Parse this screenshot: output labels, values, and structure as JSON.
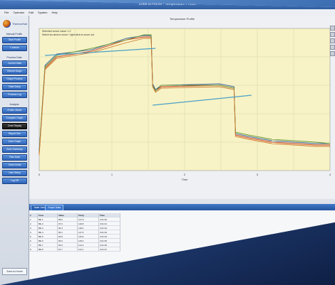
{
  "window": {
    "title": "Zone-to-Home - Temperature Profile",
    "clock": "10:05:31 AM"
  },
  "menubar": {
    "items": [
      "File",
      "Operator",
      "Edit",
      "System",
      "Help"
    ]
  },
  "sidebar": {
    "app_name": "ThermoHub",
    "groups": [
      {
        "heading": "Manual Profile",
        "items": [
          "Start Profile",
          "Controls"
        ]
      },
      {
        "heading": "Process Data",
        "items": [
          "Current Data",
          "Recent Graph",
          "Graph Process",
          "Data Setup",
          "Process Log"
        ]
      },
      {
        "heading": "Analysis",
        "items": [
          "Profile Viewer",
          "Compare Graph",
          "Zone Display",
          "Report Gen",
          "Zone Graph",
          "Zone Summary",
          "Raw Data",
          "Chart Limits",
          "User Setup",
          "Log Off"
        ]
      }
    ],
    "footer": "Zone-to-Home"
  },
  "chart": {
    "title": "Temperature Profile",
    "legend_lines": [
      "Selected cursor value: 1.2",
      "Select an area to zoom / right-click to zoom out"
    ],
    "x_axis_label": "Time",
    "colors": {
      "background": "#f7f3c6",
      "gridline": "#cccfa3",
      "reference": "#4aa0c8"
    },
    "chart_data": {
      "type": "line",
      "series": [
        {
          "color": "#c63a1e",
          "points": [
            [
              0,
              0.12
            ],
            [
              0.02,
              0.72
            ],
            [
              0.06,
              0.8
            ],
            [
              0.18,
              0.84
            ],
            [
              0.3,
              0.92
            ],
            [
              0.36,
              0.94
            ],
            [
              0.385,
              0.94
            ],
            [
              0.39,
              0.6
            ],
            [
              0.4,
              0.56
            ],
            [
              0.42,
              0.59
            ],
            [
              0.62,
              0.6
            ],
            [
              0.67,
              0.58
            ],
            [
              0.675,
              0.25
            ],
            [
              0.72,
              0.23
            ],
            [
              0.8,
              0.2
            ],
            [
              0.95,
              0.18
            ],
            [
              1,
              0.18
            ]
          ]
        },
        {
          "color": "#3a5f9f",
          "points": [
            [
              0,
              0.14
            ],
            [
              0.02,
              0.74
            ],
            [
              0.06,
              0.82
            ],
            [
              0.18,
              0.85
            ],
            [
              0.3,
              0.93
            ],
            [
              0.36,
              0.95
            ],
            [
              0.385,
              0.95
            ],
            [
              0.39,
              0.61
            ],
            [
              0.4,
              0.57
            ],
            [
              0.42,
              0.6
            ],
            [
              0.62,
              0.61
            ],
            [
              0.67,
              0.59
            ],
            [
              0.675,
              0.26
            ],
            [
              0.72,
              0.24
            ],
            [
              0.8,
              0.21
            ],
            [
              0.95,
              0.19
            ],
            [
              1,
              0.19
            ]
          ]
        },
        {
          "color": "#6c9c3a",
          "points": [
            [
              0,
              0.13
            ],
            [
              0.02,
              0.73
            ],
            [
              0.06,
              0.81
            ],
            [
              0.18,
              0.86
            ],
            [
              0.3,
              0.92
            ],
            [
              0.36,
              0.955
            ],
            [
              0.385,
              0.955
            ],
            [
              0.39,
              0.6
            ],
            [
              0.4,
              0.56
            ],
            [
              0.42,
              0.6
            ],
            [
              0.62,
              0.6
            ],
            [
              0.67,
              0.58
            ],
            [
              0.675,
              0.27
            ],
            [
              0.72,
              0.25
            ],
            [
              0.8,
              0.22
            ],
            [
              0.95,
              0.2
            ],
            [
              1,
              0.19
            ]
          ]
        },
        {
          "color": "#d07a30",
          "points": [
            [
              0,
              0.11
            ],
            [
              0.02,
              0.71
            ],
            [
              0.06,
              0.79
            ],
            [
              0.18,
              0.83
            ],
            [
              0.3,
              0.9
            ],
            [
              0.36,
              0.93
            ],
            [
              0.385,
              0.93
            ],
            [
              0.39,
              0.59
            ],
            [
              0.4,
              0.55
            ],
            [
              0.42,
              0.58
            ],
            [
              0.62,
              0.59
            ],
            [
              0.67,
              0.57
            ],
            [
              0.675,
              0.24
            ],
            [
              0.72,
              0.22
            ],
            [
              0.8,
              0.19
            ],
            [
              0.95,
              0.17
            ],
            [
              1,
              0.17
            ]
          ]
        }
      ],
      "references": [
        {
          "color": "#4aa0c8",
          "points": [
            [
              0.02,
              0.81
            ],
            [
              0.4,
              0.86
            ]
          ]
        },
        {
          "color": "#4aa0c8",
          "points": [
            [
              0.39,
              0.46
            ],
            [
              0.73,
              0.53
            ]
          ]
        }
      ]
    },
    "axis_labels": [
      "0",
      "1",
      "2",
      "3",
      "4"
    ]
  },
  "bottom_tabs": [
    "Table View",
    "Graph Data"
  ],
  "table": {
    "headers": [
      "#",
      "Zone",
      "Value",
      "Temp",
      "Time"
    ],
    "rows": [
      [
        "1",
        "Blk 1",
        "98.5",
        "121.5",
        "2:01:30"
      ],
      [
        "2",
        "Blk 2",
        "97.0",
        "119.8",
        "2:01:31"
      ],
      [
        "3",
        "Blk 3",
        "96.4",
        "118.2",
        "2:01:32"
      ],
      [
        "4",
        "Blk 4",
        "95.1",
        "117.5",
        "2:01:33"
      ],
      [
        "5",
        "Blk 5",
        "94.8",
        "116.9",
        "2:01:34"
      ],
      [
        "6",
        "Blk 6",
        "93.6",
        "115.0",
        "2:01:35"
      ],
      [
        "7",
        "Blk 7",
        "92.9",
        "114.4",
        "2:01:36"
      ],
      [
        "8",
        "Blk 8",
        "91.7",
        "113.1",
        "2:01:37"
      ]
    ]
  }
}
